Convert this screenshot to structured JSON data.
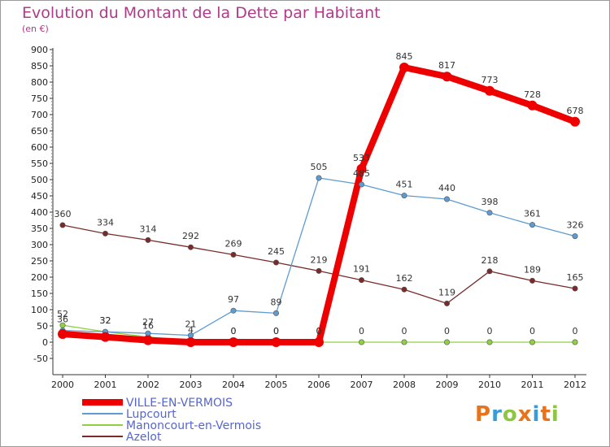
{
  "header": {
    "title": "Evolution du Montant de la Dette par Habitant",
    "subtitle": "(en €)"
  },
  "logo": {
    "text": "Proxiti",
    "colors": [
      "#e8731a",
      "#3a9bd9",
      "#8dc63f",
      "#e8731a",
      "#3a9bd9",
      "#e8731a",
      "#8dc63f"
    ]
  },
  "chart_data": {
    "type": "line",
    "title": "Evolution du Montant de la Dette par Habitant",
    "ylabel": "(en €)",
    "xlabel": "",
    "x": [
      "2000",
      "2001",
      "2002",
      "2003",
      "2004",
      "2005",
      "2006",
      "2007",
      "2008",
      "2009",
      "2010",
      "2011",
      "2012"
    ],
    "ylim": [
      -50,
      900
    ],
    "yticks": [
      -50,
      0,
      50,
      100,
      150,
      200,
      250,
      300,
      350,
      400,
      450,
      500,
      550,
      600,
      650,
      700,
      750,
      800,
      850,
      900
    ],
    "grid": false,
    "legend_position": "bottom-left",
    "series": [
      {
        "name": "VILLE-EN-VERMOIS",
        "color": "#ee0000",
        "values": [
          25,
          16,
          6,
          0,
          0,
          0,
          0,
          533,
          845,
          817,
          773,
          728,
          678
        ],
        "labels": [
          "",
          "",
          "",
          "",
          "0",
          "0",
          "0",
          "533",
          "845",
          "817",
          "773",
          "728",
          "678"
        ]
      },
      {
        "name": "Lupcourt",
        "color": "#5e9bd0",
        "values": [
          36,
          32,
          27,
          21,
          97,
          89,
          505,
          485,
          451,
          440,
          398,
          361,
          326
        ],
        "labels": [
          "36",
          "32",
          "27",
          "21",
          "97",
          "89",
          "505",
          "485",
          "451",
          "440",
          "398",
          "361",
          "326"
        ]
      },
      {
        "name": "Manoncourt-en-Vermois",
        "color": "#8fd143",
        "values": [
          52,
          32,
          16,
          4,
          0,
          0,
          0,
          0,
          0,
          0,
          0,
          0,
          0
        ],
        "labels": [
          "52",
          "32",
          "16",
          "4",
          "0",
          "0",
          "0",
          "0",
          "0",
          "0",
          "0",
          "0",
          "0"
        ]
      },
      {
        "name": "Azelot",
        "color": "#7a2a2a",
        "values": [
          360,
          334,
          314,
          292,
          269,
          245,
          219,
          191,
          162,
          119,
          218,
          189,
          165
        ],
        "labels": [
          "360",
          "334",
          "314",
          "292",
          "269",
          "245",
          "219",
          "191",
          "162",
          "119",
          "218",
          "189",
          "165"
        ]
      }
    ]
  }
}
